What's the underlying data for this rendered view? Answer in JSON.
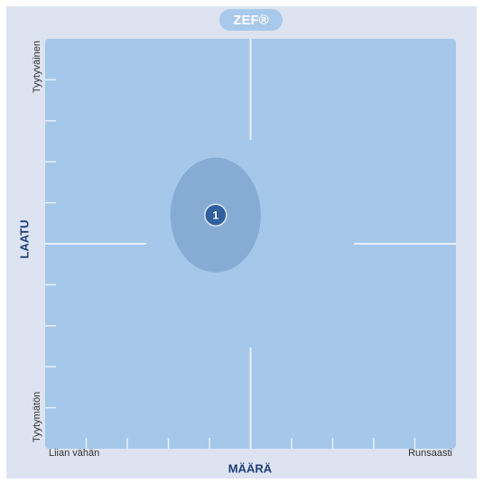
{
  "chart_data": {
    "type": "scatter",
    "title": "ZEF®",
    "xlabel": "MÄÄRÄ",
    "ylabel": "LAATU",
    "x_start_label": "Liian vähän",
    "x_end_label": "Runsaasti",
    "y_start_label": "Tyytymätön",
    "y_end_label": "Tyytyväinen",
    "xlim": [
      0,
      100
    ],
    "ylim": [
      0,
      100
    ],
    "xticks": [
      10,
      20,
      30,
      40,
      50,
      60,
      70,
      80,
      90
    ],
    "yticks": [
      10,
      20,
      30,
      40,
      50,
      60,
      70,
      80,
      90
    ],
    "point_labels": [
      "1"
    ],
    "x": [
      41.5
    ],
    "values": [
      57
    ],
    "x_spread": [
      11
    ],
    "y_spread": [
      14
    ],
    "color": "#2f5f9c",
    "spread_color": "#86acd4",
    "plot_color": "#a5c8ea"
  }
}
